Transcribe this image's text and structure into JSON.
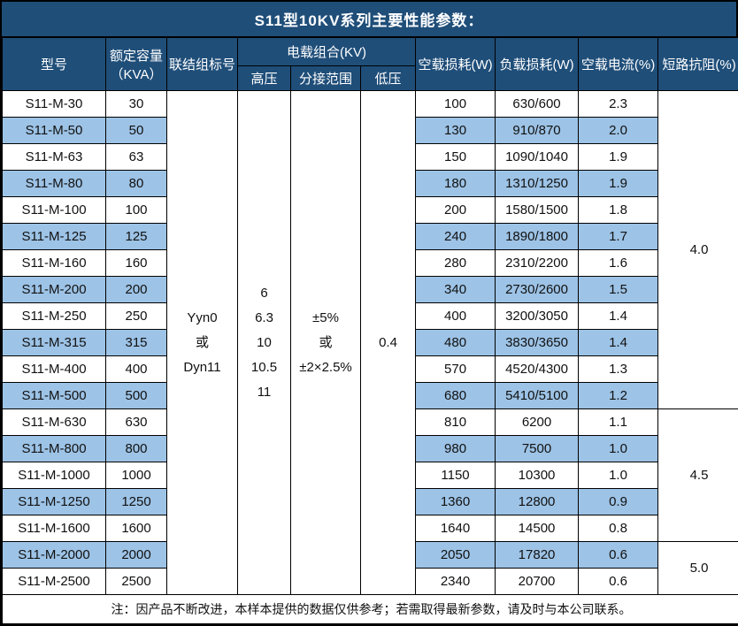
{
  "title": "S11型10KV系列主要性能参数：",
  "colors": {
    "header_bg": "#1F4E79",
    "stripe_bg": "#9DC3E6",
    "border": "#000000",
    "header_text": "#FFFFFF",
    "body_text": "#111111"
  },
  "table": {
    "headers": {
      "model": "型号",
      "capacity_line1": "额定容量",
      "capacity_line2": "（KVA）",
      "connection": "联结组标号",
      "voltage_group": "电载组合(KV)",
      "high_voltage": "高压",
      "tap_range": "分接范围",
      "low_voltage": "低压",
      "no_load_loss": "空载损耗(W)",
      "load_loss": "负载损耗(W)",
      "no_load_current": "空载电流(%)",
      "impedance": "短路抗阻(%)"
    },
    "merged": {
      "connection_lines": [
        "Yyn0",
        "或",
        "Dyn11"
      ],
      "high_voltage_lines": [
        "6",
        "6.3",
        "10",
        "10.5",
        "11"
      ],
      "tap_range_lines": [
        "±5%",
        "或",
        "±2×2.5%"
      ],
      "low_voltage": "0.4"
    },
    "impedance_groups": [
      {
        "value": "4.0",
        "row_start": 0,
        "row_span": 12
      },
      {
        "value": "4.5",
        "row_start": 12,
        "row_span": 5
      },
      {
        "value": "5.0",
        "row_start": 17,
        "row_span": 2
      }
    ],
    "rows": [
      {
        "model": "S11-M-30",
        "capacity": "30",
        "no_load_loss": "100",
        "load_loss": "630/600",
        "no_load_current": "2.3"
      },
      {
        "model": "S11-M-50",
        "capacity": "50",
        "no_load_loss": "130",
        "load_loss": "910/870",
        "no_load_current": "2.0"
      },
      {
        "model": "S11-M-63",
        "capacity": "63",
        "no_load_loss": "150",
        "load_loss": "1090/1040",
        "no_load_current": "1.9"
      },
      {
        "model": "S11-M-80",
        "capacity": "80",
        "no_load_loss": "180",
        "load_loss": "1310/1250",
        "no_load_current": "1.9"
      },
      {
        "model": "S11-M-100",
        "capacity": "100",
        "no_load_loss": "200",
        "load_loss": "1580/1500",
        "no_load_current": "1.8"
      },
      {
        "model": "S11-M-125",
        "capacity": "125",
        "no_load_loss": "240",
        "load_loss": "1890/1800",
        "no_load_current": "1.7"
      },
      {
        "model": "S11-M-160",
        "capacity": "160",
        "no_load_loss": "280",
        "load_loss": "2310/2200",
        "no_load_current": "1.6"
      },
      {
        "model": "S11-M-200",
        "capacity": "200",
        "no_load_loss": "340",
        "load_loss": "2730/2600",
        "no_load_current": "1.5"
      },
      {
        "model": "S11-M-250",
        "capacity": "250",
        "no_load_loss": "400",
        "load_loss": "3200/3050",
        "no_load_current": "1.4"
      },
      {
        "model": "S11-M-315",
        "capacity": "315",
        "no_load_loss": "480",
        "load_loss": "3830/3650",
        "no_load_current": "1.4"
      },
      {
        "model": "S11-M-400",
        "capacity": "400",
        "no_load_loss": "570",
        "load_loss": "4520/4300",
        "no_load_current": "1.3"
      },
      {
        "model": "S11-M-500",
        "capacity": "500",
        "no_load_loss": "680",
        "load_loss": "5410/5100",
        "no_load_current": "1.2"
      },
      {
        "model": "S11-M-630",
        "capacity": "630",
        "no_load_loss": "810",
        "load_loss": "6200",
        "no_load_current": "1.1"
      },
      {
        "model": "S11-M-800",
        "capacity": "800",
        "no_load_loss": "980",
        "load_loss": "7500",
        "no_load_current": "1.0"
      },
      {
        "model": "S11-M-1000",
        "capacity": "1000",
        "no_load_loss": "1150",
        "load_loss": "10300",
        "no_load_current": "1.0"
      },
      {
        "model": "S11-M-1250",
        "capacity": "1250",
        "no_load_loss": "1360",
        "load_loss": "12800",
        "no_load_current": "0.9"
      },
      {
        "model": "S11-M-1600",
        "capacity": "1600",
        "no_load_loss": "1640",
        "load_loss": "14500",
        "no_load_current": "0.8"
      },
      {
        "model": "S11-M-2000",
        "capacity": "2000",
        "no_load_loss": "2050",
        "load_loss": "17820",
        "no_load_current": "0.6"
      },
      {
        "model": "S11-M-2500",
        "capacity": "2500",
        "no_load_loss": "2340",
        "load_loss": "20700",
        "no_load_current": "0.6"
      }
    ],
    "note": "注：因产品不断改进，本样本提供的数据仅供参考；若需取得最新参数，请及时与本公司联系。"
  }
}
